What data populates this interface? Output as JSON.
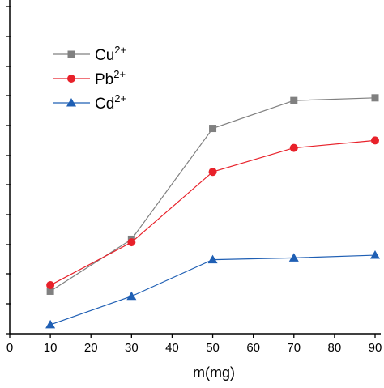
{
  "chart_data": {
    "type": "line",
    "x": [
      10,
      30,
      50,
      70,
      90
    ],
    "xlabel": "m(mg)",
    "xlim": [
      0,
      90
    ],
    "xticks": [
      0,
      10,
      20,
      30,
      40,
      50,
      60,
      70,
      80,
      90
    ],
    "grid": false,
    "legend_position": "top-left",
    "series": [
      {
        "name": "Cu",
        "charge": "2+",
        "values": [
          0.42,
          2.15,
          5.85,
          6.78,
          6.87
        ],
        "color": "#808080",
        "marker": "square"
      },
      {
        "name": "Pb",
        "charge": "2+",
        "values": [
          0.62,
          2.05,
          4.4,
          5.2,
          5.45
        ],
        "color": "#e8212a",
        "marker": "circle"
      },
      {
        "name": "Cd",
        "charge": "2+",
        "values": [
          -0.7,
          0.25,
          1.47,
          1.53,
          1.62
        ],
        "color": "#1f5fb4",
        "marker": "triangle"
      }
    ]
  }
}
